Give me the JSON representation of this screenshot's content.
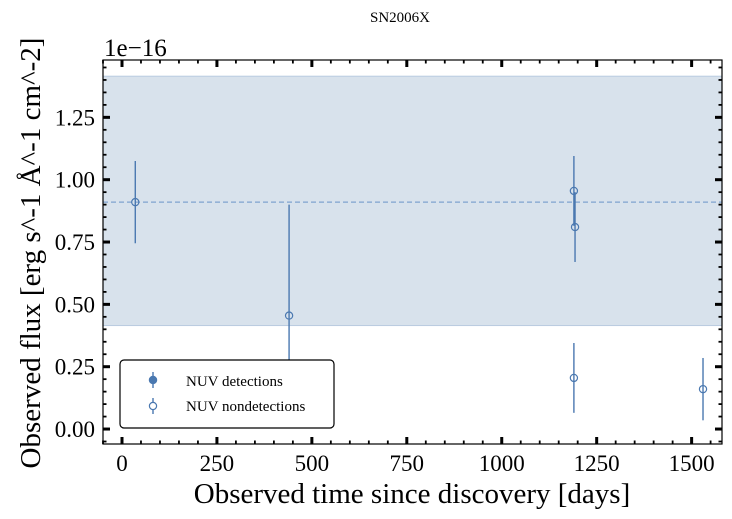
{
  "chart_data": {
    "type": "scatter",
    "title": "SN2006X",
    "xlabel": "Observed time since discovery [days]",
    "ylabel": "Observed flux [erg s^-1 Å^-1 cm^-2]",
    "offset_label": "1e−16",
    "xlim": [
      -50,
      1580
    ],
    "ylim": [
      -0.06,
      1.48
    ],
    "x_ticks": [
      0,
      250,
      500,
      750,
      1000,
      1250,
      1500
    ],
    "x_tick_labels": [
      "0",
      "250",
      "500",
      "750",
      "1000",
      "1250",
      "1500"
    ],
    "y_ticks": [
      0.0,
      0.25,
      0.5,
      0.75,
      1.0,
      1.25
    ],
    "y_tick_labels": [
      "0.00",
      "0.25",
      "0.50",
      "0.75",
      "1.00",
      "1.25"
    ],
    "grid": false,
    "legend_position": "lower-left",
    "colors": {
      "series": "#4a78b0",
      "band_fill": "#d8e2ec",
      "band_edge": "#b9cbe0",
      "mean_line": "#7fa3cf"
    },
    "band": {
      "y_low": 0.415,
      "y_high": 1.415
    },
    "mean_line_y": 0.91,
    "series": [
      {
        "name": "NUV detections",
        "marker": "filled",
        "points": []
      },
      {
        "name": "NUV nondetections",
        "marker": "open",
        "points": [
          {
            "x": 35,
            "y": 0.91,
            "yerr_low": 0.165,
            "yerr_high": 0.165
          },
          {
            "x": 440,
            "y": 0.455,
            "yerr_low": 0.2,
            "yerr_high": 0.445
          },
          {
            "x": 1190,
            "y": 0.955,
            "yerr_low": 0.14,
            "yerr_high": 0.14
          },
          {
            "x": 1193,
            "y": 0.81,
            "yerr_low": 0.14,
            "yerr_high": 0.14
          },
          {
            "x": 1190,
            "y": 0.205,
            "yerr_low": 0.14,
            "yerr_high": 0.14
          },
          {
            "x": 1530,
            "y": 0.16,
            "yerr_low": 0.125,
            "yerr_high": 0.125
          }
        ]
      }
    ]
  }
}
